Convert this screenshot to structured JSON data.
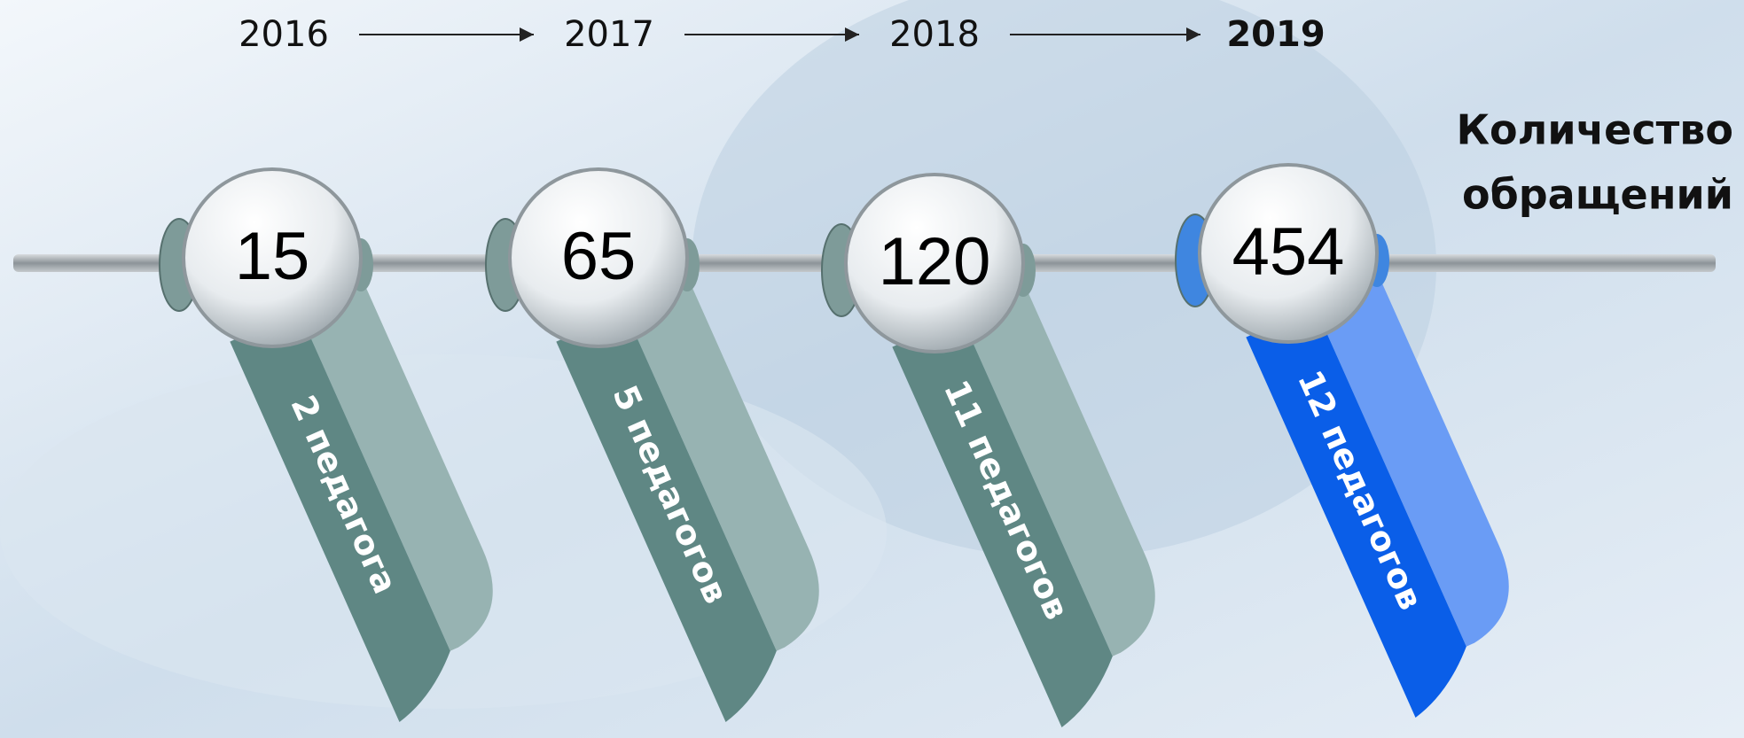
{
  "title": {
    "lines": [
      "Количество",
      "обращений"
    ]
  },
  "timeline": {
    "items": [
      {
        "year": "2016",
        "count": "15",
        "label": "2 педагога"
      },
      {
        "year": "2017",
        "count": "65",
        "label": "5 педагогов"
      },
      {
        "year": "2018",
        "count": "120",
        "label": "11 педагогов"
      },
      {
        "year": "2019",
        "count": "454",
        "label": "12 педагогов"
      }
    ]
  }
}
